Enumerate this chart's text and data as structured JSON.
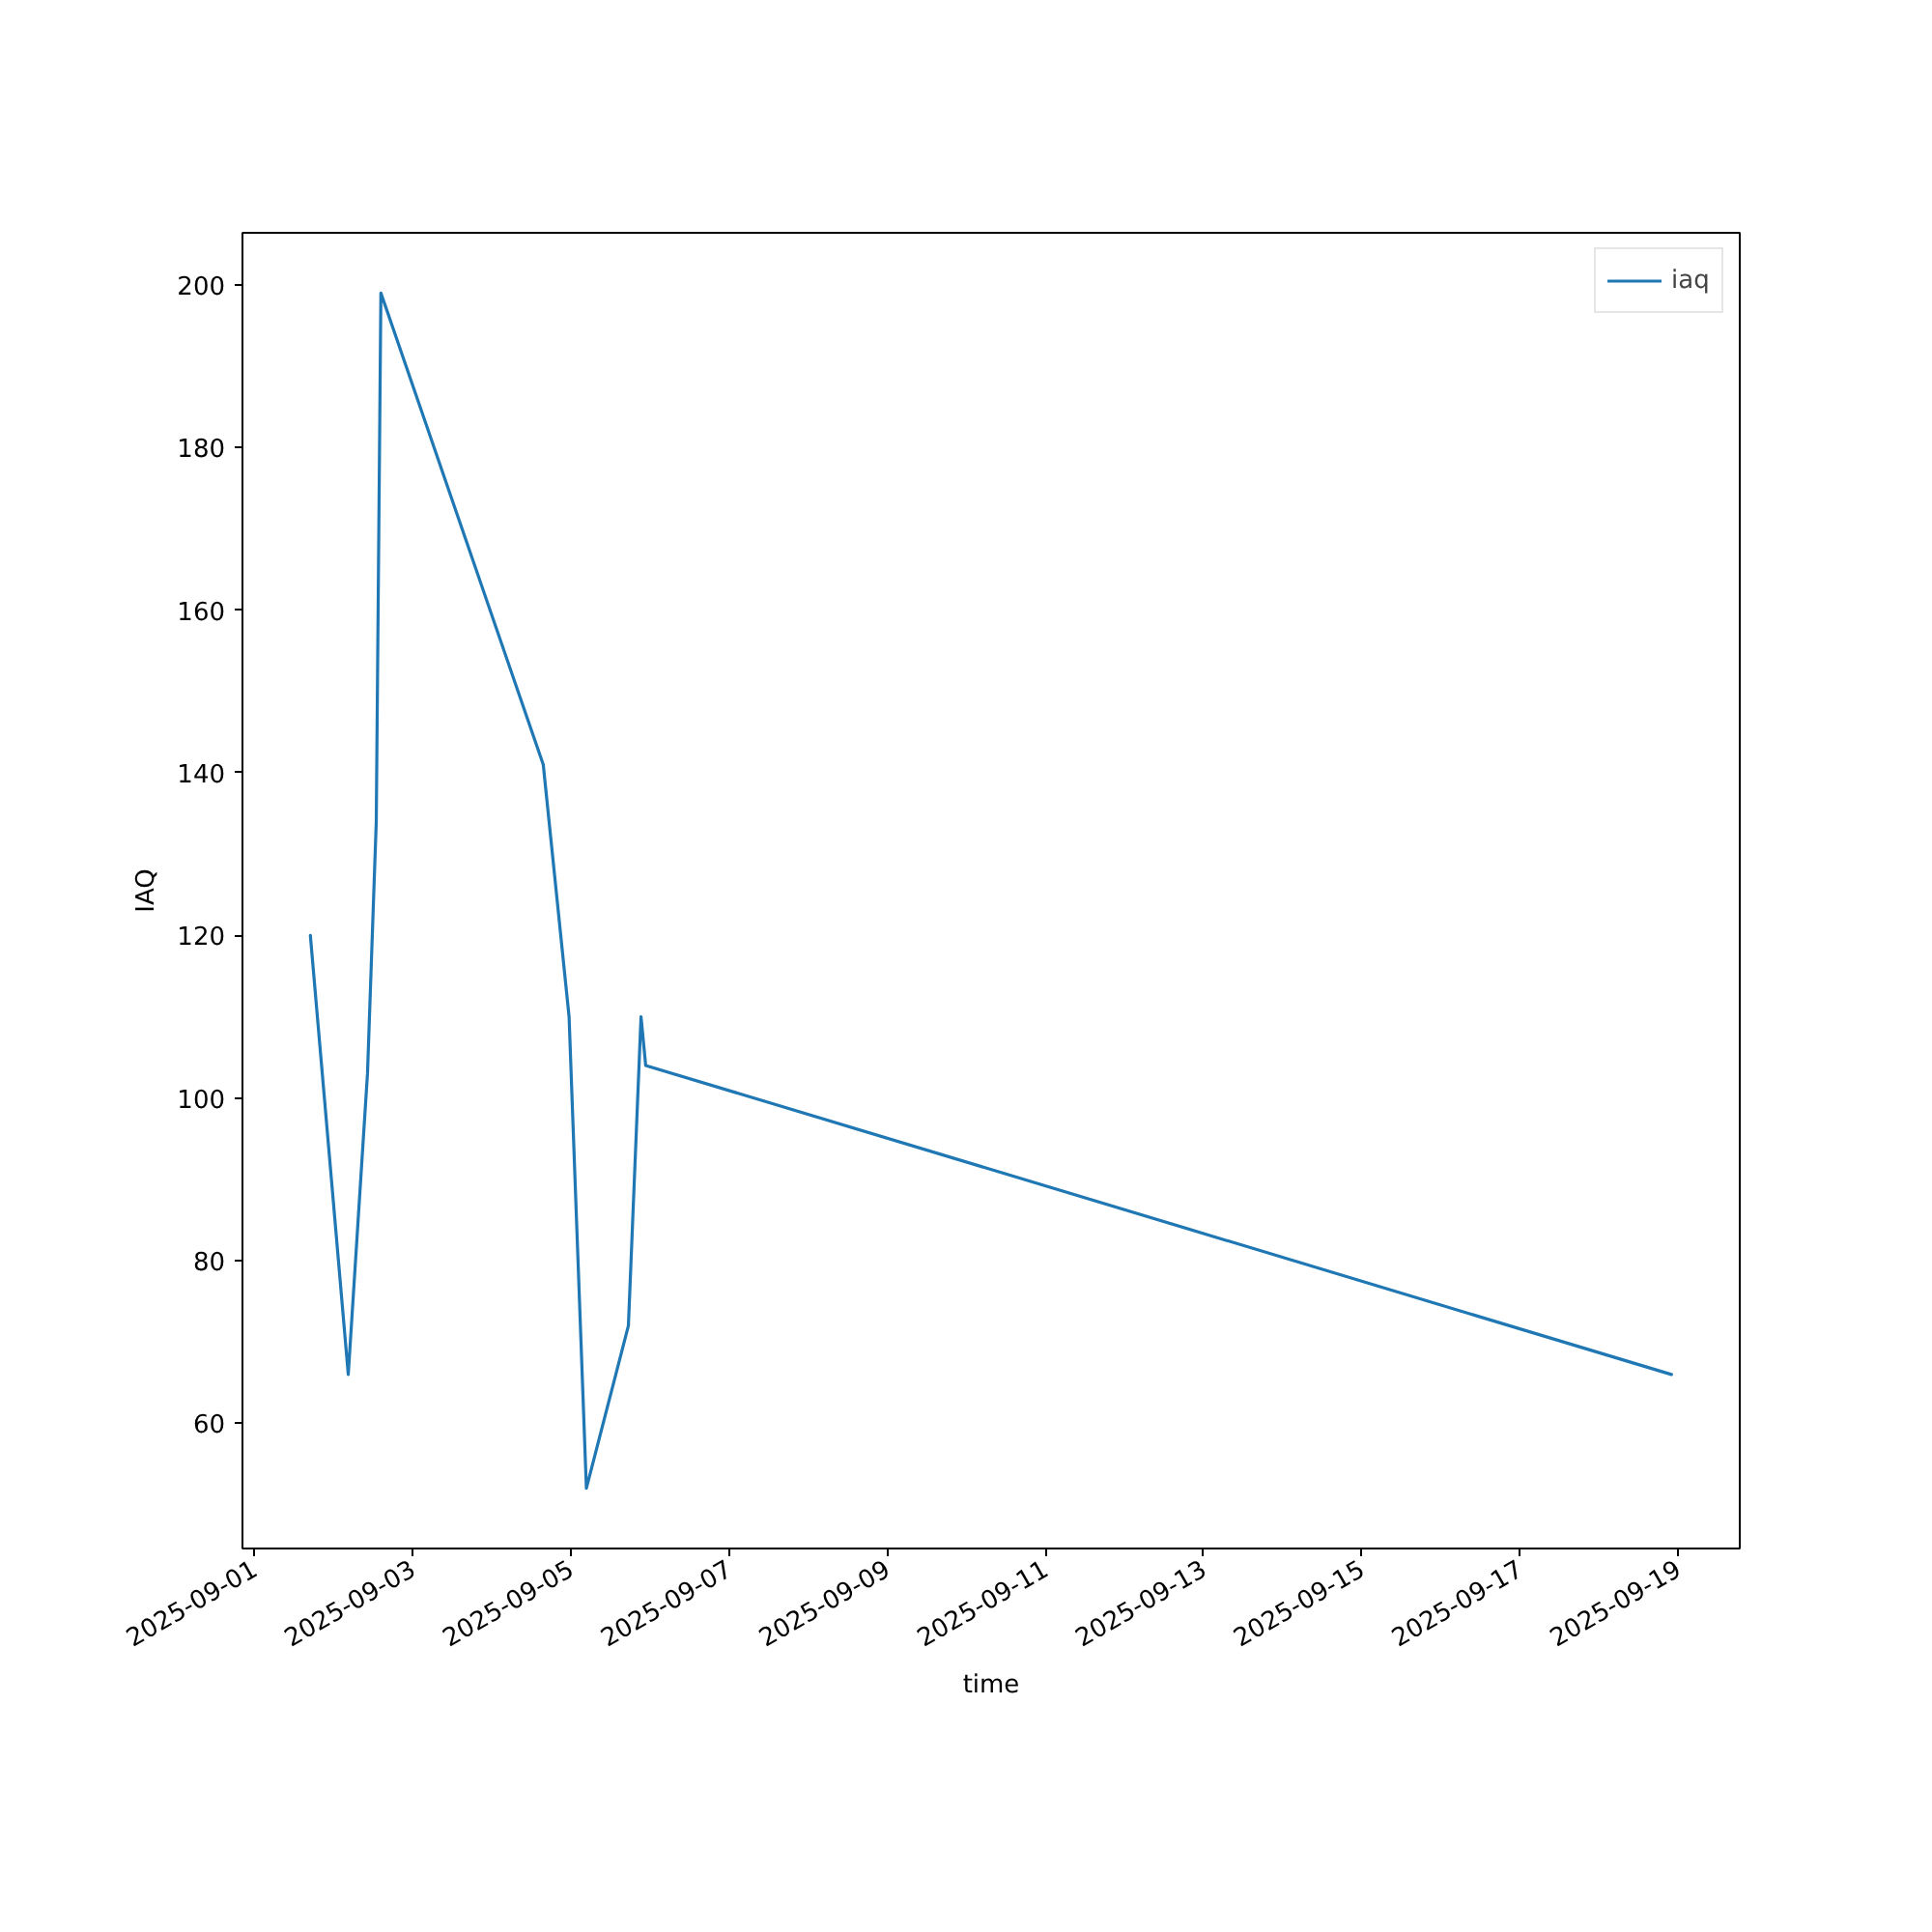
{
  "chart_data": {
    "type": "line",
    "xlabel": "time",
    "ylabel": "IAQ",
    "x": [
      "2025-09-01T17:00",
      "2025-09-02T04:30",
      "2025-09-02T10:20",
      "2025-09-02T13:00",
      "2025-09-02T14:24",
      "2025-09-04T15:40",
      "2025-09-04T23:30",
      "2025-09-05T04:45",
      "2025-09-05T17:30",
      "2025-09-05T21:20",
      "2025-09-05T22:45",
      "2025-09-18T22:00"
    ],
    "series": [
      {
        "name": "iaq",
        "color": "#1f77b4",
        "values": [
          120,
          66,
          103,
          134,
          199,
          141,
          110,
          52,
          72,
          110,
          104,
          66
        ]
      }
    ],
    "xlim": [
      "2025-08-31T20:24",
      "2025-09-19T18:43"
    ],
    "ylim": [
      44.6,
      206.4
    ],
    "xticks": [
      "2025-09-01",
      "2025-09-03",
      "2025-09-05",
      "2025-09-07",
      "2025-09-09",
      "2025-09-11",
      "2025-09-13",
      "2025-09-15",
      "2025-09-17",
      "2025-09-19"
    ],
    "yticks": [
      60,
      80,
      100,
      120,
      140,
      160,
      180,
      200
    ],
    "legend": "top right",
    "line_style": "solid",
    "grid": false
  }
}
